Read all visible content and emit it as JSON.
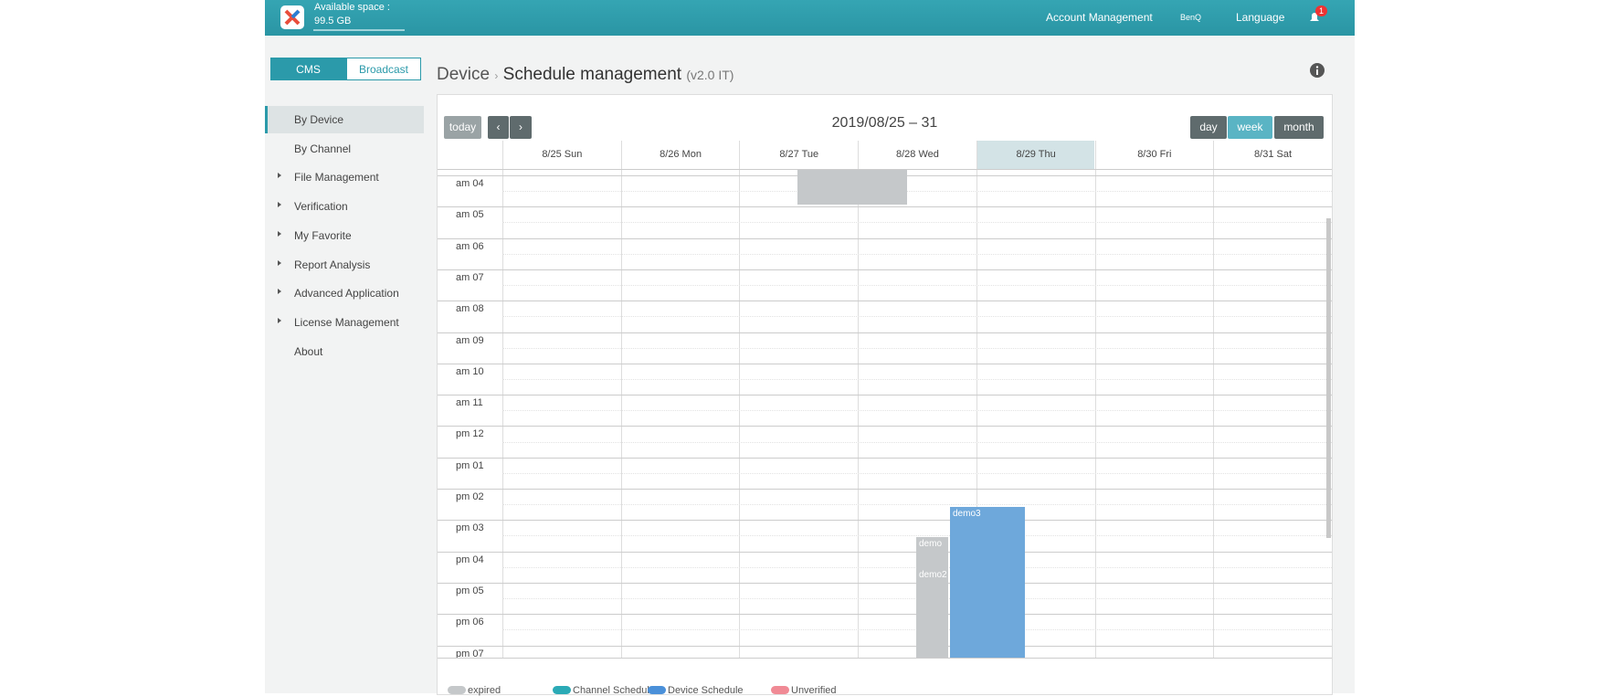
{
  "header": {
    "available_space_label": "Available space :",
    "available_space_value": "99.5 GB",
    "nav": [
      "Account Management",
      "BenQ",
      "Language"
    ],
    "notification_count": "1"
  },
  "tabs": [
    "CMS",
    "Broadcast"
  ],
  "breadcrumb": {
    "parent": "Device",
    "title": "Schedule management",
    "version": "(v2.0 IT)"
  },
  "sidebar": [
    {
      "label": "By Device",
      "expandable": false
    },
    {
      "label": "By Channel",
      "expandable": false
    },
    {
      "label": "File Management",
      "expandable": true
    },
    {
      "label": "Verification",
      "expandable": true
    },
    {
      "label": "My Favorite",
      "expandable": true
    },
    {
      "label": "Report Analysis",
      "expandable": true
    },
    {
      "label": "Advanced Application",
      "expandable": true
    },
    {
      "label": "License Management",
      "expandable": true
    },
    {
      "label": "About",
      "expandable": false
    }
  ],
  "calendar": {
    "toolbar": {
      "today": "today",
      "range": "2019/08/25 – 31",
      "views": [
        "day",
        "week",
        "month"
      ]
    },
    "days": [
      "8/25 Sun",
      "8/26 Mon",
      "8/27 Tue",
      "8/28 Wed",
      "8/29 Thu",
      "8/30 Fri",
      "8/31 Sat"
    ],
    "hours": [
      "am 04",
      "am 05",
      "am 06",
      "am 07",
      "am 08",
      "am 09",
      "am 10",
      "am 11",
      "pm 12",
      "pm 01",
      "pm 02",
      "pm 03",
      "pm 04",
      "pm 05",
      "pm 06",
      "pm 07"
    ],
    "events": [
      "demo",
      "demo2",
      "demo3"
    ]
  },
  "legend": [
    "expired",
    "Channel Schedule",
    "Device Schedule",
    "Unverified"
  ]
}
